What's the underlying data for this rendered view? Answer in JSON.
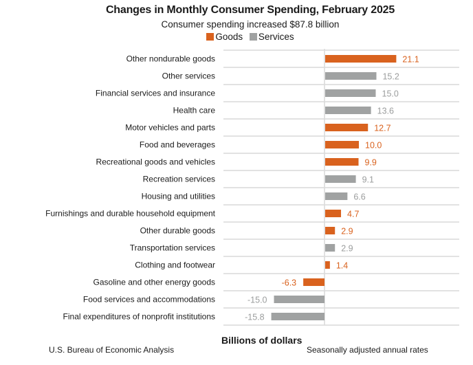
{
  "chart_data": {
    "type": "bar",
    "orientation": "horizontal",
    "title": "Changes in Monthly Consumer Spending, February 2025",
    "subtitle": "Consumer spending increased $87.8 billion",
    "xlabel": "Billions of dollars",
    "ylabel": "",
    "source": "U.S. Bureau of Economic Analysis",
    "note": "Seasonally adjusted annual rates",
    "legend": [
      {
        "name": "Goods",
        "color": "#D9621E"
      },
      {
        "name": "Services",
        "color": "#A0A2A2"
      }
    ],
    "legend_position": "top-center",
    "xlim": [
      -30,
      40
    ],
    "grid": true,
    "categories": [
      "Other nondurable goods",
      "Other services",
      "Financial services and insurance",
      "Health care",
      "Motor vehicles and parts",
      "Food and beverages",
      "Recreational goods and vehicles",
      "Recreation services",
      "Housing and utilities",
      "Furnishings and durable household equipment",
      "Other durable goods",
      "Transportation services",
      "Clothing and footwear",
      "Gasoline and other energy goods",
      "Food services and accommodations",
      "Final expenditures of nonprofit institutions"
    ],
    "values": [
      21.1,
      15.2,
      15.0,
      13.6,
      12.7,
      10.0,
      9.9,
      9.1,
      6.6,
      4.7,
      2.9,
      2.9,
      1.4,
      -6.3,
      -15.0,
      -15.8
    ],
    "value_labels": [
      "21.1",
      "15.2",
      "15.0",
      "13.6",
      "12.7",
      "10.0",
      "9.9",
      "9.1",
      "6.6",
      "4.7",
      "2.9",
      "2.9",
      "1.4",
      "-6.3",
      "-15.0",
      "-15.8"
    ],
    "series_of_category": [
      "Goods",
      "Services",
      "Services",
      "Services",
      "Goods",
      "Goods",
      "Goods",
      "Services",
      "Services",
      "Goods",
      "Goods",
      "Services",
      "Goods",
      "Goods",
      "Services",
      "Services"
    ]
  },
  "colors": {
    "goods": "#D9621E",
    "services": "#A0A2A2",
    "goods_label": "#D9621E",
    "services_label": "#9B9D9D",
    "grid": "#D9D9D9"
  }
}
